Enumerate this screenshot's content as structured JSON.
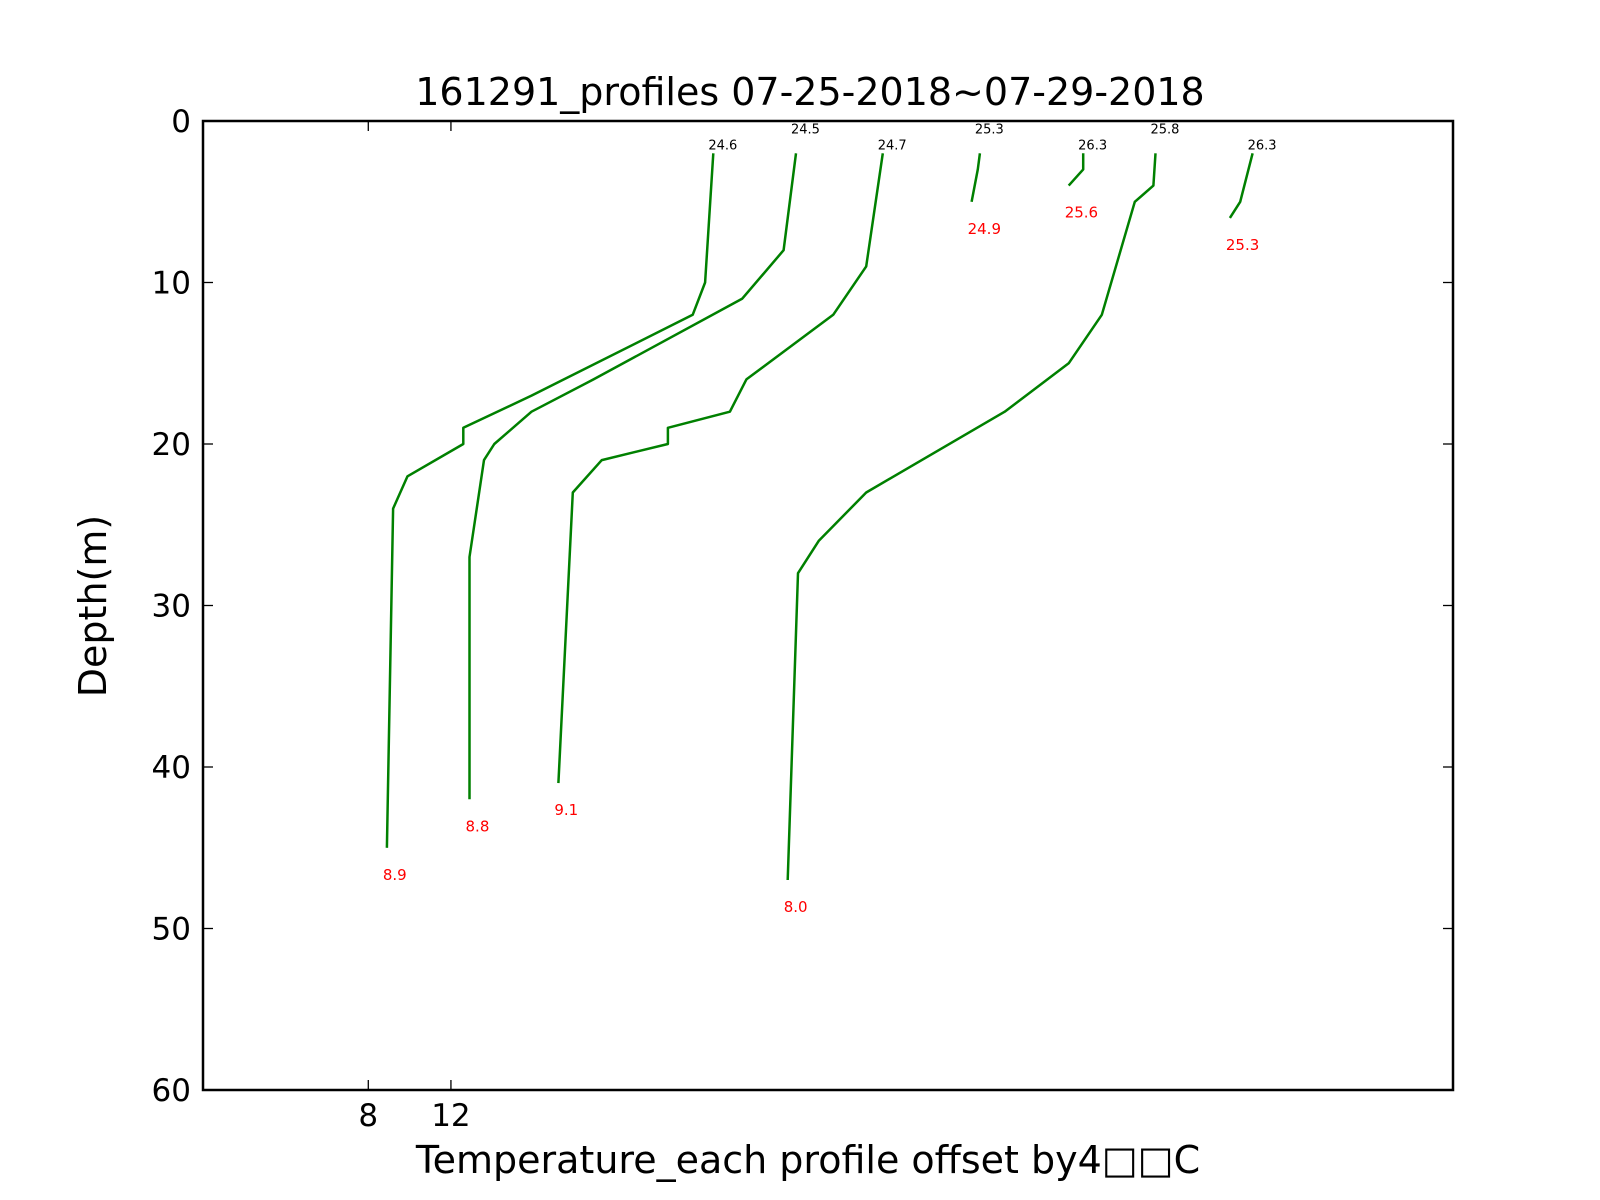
{
  "chart_data": {
    "type": "line",
    "title": "161291_profiles 07-25-2018~07-29-2018",
    "xlabel": "Temperature_each profile offset by4□□C",
    "ylabel": "Depth(m)",
    "xlim": [
      0,
      60.5
    ],
    "ylim": [
      60,
      0
    ],
    "y_inverted": true,
    "yticks": [
      0,
      10,
      20,
      30,
      40,
      50,
      60
    ],
    "ytick_labels": [
      "0",
      "10",
      "20",
      "30",
      "40",
      "50",
      "60"
    ],
    "xticks": [
      8,
      12
    ],
    "xtick_labels": [
      "8",
      "12"
    ],
    "grid": false,
    "line_color": "#008000",
    "top_label_color": "#000000",
    "bottom_label_color": "#ff0000",
    "profiles": [
      {
        "top_label": "24.6",
        "bottom_label": "8.9",
        "points": [
          [
            24.7,
            2
          ],
          [
            24.3,
            10
          ],
          [
            23.7,
            12
          ],
          [
            15.9,
            17
          ],
          [
            12.6,
            19
          ],
          [
            12.6,
            20
          ],
          [
            9.9,
            22
          ],
          [
            9.2,
            24
          ],
          [
            8.9,
            45
          ]
        ]
      },
      {
        "top_label": "24.5",
        "bottom_label": "8.8",
        "points": [
          [
            28.7,
            2
          ],
          [
            28.1,
            8
          ],
          [
            26.1,
            11
          ],
          [
            18.9,
            16
          ],
          [
            15.9,
            18
          ],
          [
            14.1,
            20
          ],
          [
            13.6,
            21
          ],
          [
            12.9,
            27
          ],
          [
            12.9,
            42
          ]
        ]
      },
      {
        "top_label": "24.7",
        "bottom_label": "9.1",
        "points": [
          [
            32.9,
            2
          ],
          [
            32.1,
            9
          ],
          [
            30.5,
            12
          ],
          [
            26.3,
            16
          ],
          [
            25.5,
            18
          ],
          [
            22.5,
            19
          ],
          [
            22.5,
            20
          ],
          [
            19.3,
            21
          ],
          [
            17.9,
            23
          ],
          [
            17.2,
            41
          ]
        ]
      },
      {
        "top_label": "25.3",
        "bottom_label": "24.9",
        "points": [
          [
            37.6,
            2
          ],
          [
            37.5,
            3
          ],
          [
            37.2,
            5
          ]
        ]
      },
      {
        "top_label": "26.3",
        "bottom_label": "25.6",
        "points": [
          [
            42.6,
            2
          ],
          [
            42.6,
            3
          ],
          [
            41.9,
            4
          ]
        ]
      },
      {
        "top_label": "25.8",
        "bottom_label": "8.0",
        "points": [
          [
            46.1,
            2
          ],
          [
            46.0,
            4
          ],
          [
            45.1,
            5
          ],
          [
            43.5,
            12
          ],
          [
            41.9,
            15
          ],
          [
            38.8,
            18
          ],
          [
            32.1,
            23
          ],
          [
            29.8,
            26
          ],
          [
            28.8,
            28
          ],
          [
            28.3,
            47
          ]
        ]
      },
      {
        "top_label": "26.3",
        "bottom_label": "25.3",
        "points": [
          [
            50.8,
            2
          ],
          [
            50.2,
            5
          ],
          [
            49.7,
            6
          ]
        ]
      }
    ]
  }
}
